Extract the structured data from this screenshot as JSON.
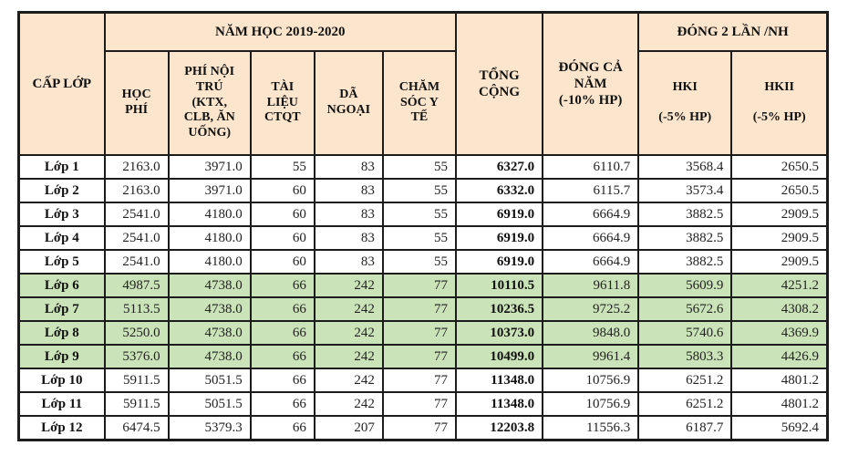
{
  "table": {
    "colors": {
      "header_bg": "#fce5cd",
      "highlight_row_bg": "#cbe3b8",
      "border": "#1c1c1c"
    },
    "header": {
      "cap_lop": "CẤP LỚP",
      "nam_hoc": "NĂM HỌC 2019-2020",
      "hoc_phi": "HỌC\nPHÍ",
      "phi_noi_tru": "PHÍ NỘI\nTRÚ\n(KTX,\nCLB, ĂN\nUỐNG)",
      "tai_lieu": "TÀI\nLIỆU\nCTQT",
      "da_ngoai": "DÃ\nNGOẠI",
      "cham_soc_y_te": "CHĂM\nSÓC Y\nTẾ",
      "tong_cong": "TỔNG\nCỘNG",
      "dong_ca_nam": "ĐÓNG CẢ\nNĂM\n(-10% HP)",
      "dong_2_lan": "ĐÓNG 2 LẦN /NH",
      "hki": "HKI\n\n(-5% HP)",
      "hkii": "HKII\n\n(-5% HP)"
    },
    "column_cell_names": [
      "hoc-phi-cell",
      "phi-noi-tru-cell",
      "tai-lieu-ctqt-cell",
      "da-ngoai-cell",
      "cham-soc-y-te-cell",
      "tong-cong-cell",
      "dong-ca-nam-cell",
      "hki-cell",
      "hkii-cell"
    ],
    "rows": [
      {
        "label": "Lớp 1",
        "highlight": false,
        "values": [
          "2163.0",
          "3971.0",
          "55",
          "83",
          "55",
          "6327.0",
          "6110.7",
          "3568.4",
          "2650.5"
        ]
      },
      {
        "label": "Lớp 2",
        "highlight": false,
        "values": [
          "2163.0",
          "3971.0",
          "60",
          "83",
          "55",
          "6332.0",
          "6115.7",
          "3573.4",
          "2650.5"
        ]
      },
      {
        "label": "Lớp 3",
        "highlight": false,
        "values": [
          "2541.0",
          "4180.0",
          "60",
          "83",
          "55",
          "6919.0",
          "6664.9",
          "3882.5",
          "2909.5"
        ]
      },
      {
        "label": "Lớp 4",
        "highlight": false,
        "values": [
          "2541.0",
          "4180.0",
          "60",
          "83",
          "55",
          "6919.0",
          "6664.9",
          "3882.5",
          "2909.5"
        ]
      },
      {
        "label": "Lớp 5",
        "highlight": false,
        "values": [
          "2541.0",
          "4180.0",
          "60",
          "83",
          "55",
          "6919.0",
          "6664.9",
          "3882.5",
          "2909.5"
        ]
      },
      {
        "label": "Lớp 6",
        "highlight": true,
        "values": [
          "4987.5",
          "4738.0",
          "66",
          "242",
          "77",
          "10110.5",
          "9611.8",
          "5609.9",
          "4251.2"
        ]
      },
      {
        "label": "Lớp 7",
        "highlight": true,
        "values": [
          "5113.5",
          "4738.0",
          "66",
          "242",
          "77",
          "10236.5",
          "9725.2",
          "5672.6",
          "4308.2"
        ]
      },
      {
        "label": "Lớp 8",
        "highlight": true,
        "values": [
          "5250.0",
          "4738.0",
          "66",
          "242",
          "77",
          "10373.0",
          "9848.0",
          "5740.6",
          "4369.9"
        ]
      },
      {
        "label": "Lớp 9",
        "highlight": true,
        "values": [
          "5376.0",
          "4738.0",
          "66",
          "242",
          "77",
          "10499.0",
          "9961.4",
          "5803.3",
          "4426.9"
        ]
      },
      {
        "label": "Lớp 10",
        "highlight": false,
        "values": [
          "5911.5",
          "5051.5",
          "66",
          "242",
          "77",
          "11348.0",
          "10756.9",
          "6251.2",
          "4801.2"
        ]
      },
      {
        "label": "Lớp 11",
        "highlight": false,
        "values": [
          "5911.5",
          "5051.5",
          "66",
          "242",
          "77",
          "11348.0",
          "10756.9",
          "6251.2",
          "4801.2"
        ]
      },
      {
        "label": "Lớp 12",
        "highlight": false,
        "values": [
          "6474.5",
          "5379.3",
          "66",
          "207",
          "77",
          "12203.8",
          "11556.3",
          "6187.7",
          "5692.4"
        ]
      }
    ]
  }
}
